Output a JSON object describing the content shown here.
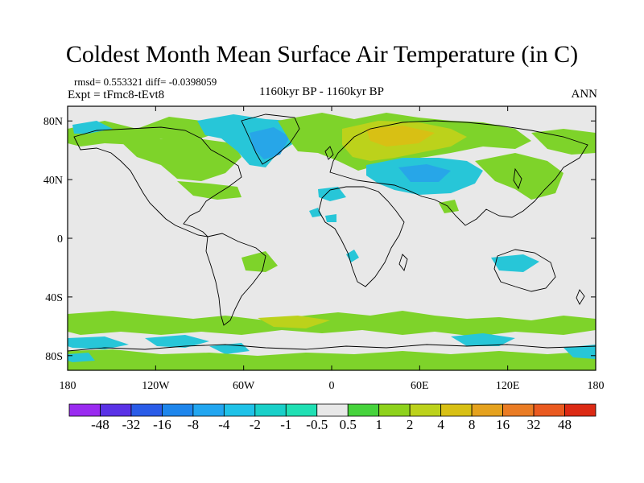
{
  "title": "Coldest Month Mean Surface Air Temperature (in C)",
  "stats": "rmsd= 0.553321  diff= -0.0398059",
  "experiment": "Expt = tFmc8-tEvt8",
  "period": "1160kyr BP - 1160kyr BP",
  "season": "ANN",
  "axes": {
    "x_ticks": [
      "180",
      "120W",
      "60W",
      "0",
      "60E",
      "120E",
      "180"
    ],
    "y_ticks": [
      "80N",
      "40N",
      "0",
      "40S",
      "80S"
    ]
  },
  "colorbar": {
    "colors": [
      "#9a2bf0",
      "#5a32e6",
      "#2a5ce8",
      "#1e86ec",
      "#22a6f0",
      "#1fc2e8",
      "#19d0c9",
      "#20e0b4",
      "#e8e8e8",
      "#46d33c",
      "#8ed21c",
      "#bcd21b",
      "#d8c014",
      "#e5a21e",
      "#ea7c24",
      "#ea5a20",
      "#dc2a14"
    ],
    "labels": [
      "-48",
      "-32",
      "-16",
      "-8",
      "-4",
      "-2",
      "-1",
      "-0.5",
      "0.5",
      "1",
      "2",
      "4",
      "8",
      "16",
      "32",
      "48"
    ]
  },
  "colors": {
    "land_neutral": "#e8e8e8",
    "warm_green": "#7ed32a",
    "warm_yellow": "#bcd21b",
    "cool_cyan": "#22c6dc",
    "cool_blue": "#27a6e8"
  }
}
